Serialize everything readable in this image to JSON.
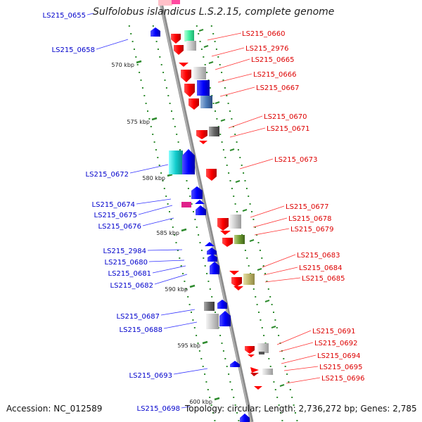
{
  "title": "Sulfolobus islandicus L.S.2.15, complete genome",
  "accession": "Accession: NC_012589",
  "summary": "Topology: circular; Length: 2,736,272 bp; Genes: 2,785",
  "colors": {
    "forward": "#ff0000",
    "reverse": "#0000ff",
    "backbone": "#8c8c8c",
    "ticks": "#2e8b2e"
  },
  "scale": {
    "unit": "kbp",
    "marks": [
      "570 kbp",
      "575 kbp",
      "580 kbp",
      "585 kbp",
      "590 kbp",
      "595 kbp",
      "600 kbp"
    ]
  },
  "left_labels": [
    "LS215_0655",
    "LS215_0658",
    "LS215_0672",
    "LS215_0674",
    "LS215_0675",
    "LS215_0676",
    "LS215_2984",
    "LS215_0680",
    "LS215_0681",
    "LS215_0682",
    "LS215_0687",
    "LS215_0688",
    "LS215_0693",
    "LS215_0698"
  ],
  "right_labels": [
    "LS215_0660",
    "LS215_2976",
    "LS215_0665",
    "LS215_0666",
    "LS215_0667",
    "LS215_0670",
    "LS215_0671",
    "LS215_0673",
    "LS215_0677",
    "LS215_0678",
    "LS215_0679",
    "LS215_0683",
    "LS215_0684",
    "LS215_0685",
    "LS215_0691",
    "LS215_0692",
    "LS215_0694",
    "LS215_0695",
    "LS215_0696"
  ]
}
